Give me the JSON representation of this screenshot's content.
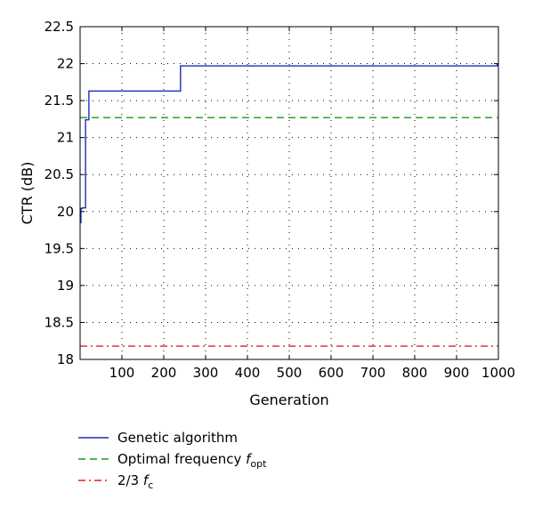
{
  "chart_data": {
    "type": "line",
    "xlabel": "Generation",
    "ylabel": "CTR (dB)",
    "xlim": [
      0,
      1000
    ],
    "ylim": [
      18,
      22.5
    ],
    "x_ticks": [
      100,
      200,
      300,
      400,
      500,
      600,
      700,
      800,
      900,
      1000
    ],
    "y_ticks": [
      18,
      18.5,
      19,
      19.5,
      20,
      20.5,
      21,
      21.5,
      22,
      22.5
    ],
    "grid": true,
    "legend_position": "bottom",
    "series": [
      {
        "name": "Genetic algorithm",
        "style": "solid",
        "color": "#1f2fb8",
        "step": true,
        "x": [
          0,
          2,
          5,
          13,
          21,
          240,
          997,
          1000
        ],
        "y": [
          19.85,
          20.04,
          20.05,
          21.24,
          21.63,
          21.97,
          21.99,
          21.99
        ]
      },
      {
        "name": "Optimal frequency",
        "legend_symbol": "f",
        "legend_subscript": "opt",
        "style": "dashed",
        "color": "#1a9a1a",
        "x": [
          0,
          1000
        ],
        "y": [
          21.27,
          21.27
        ]
      },
      {
        "name": "2/3",
        "legend_symbol": "f",
        "legend_subscript": "c",
        "style": "dashdot",
        "color": "#e02020",
        "x": [
          0,
          1000
        ],
        "y": [
          18.18,
          18.18
        ]
      }
    ]
  }
}
